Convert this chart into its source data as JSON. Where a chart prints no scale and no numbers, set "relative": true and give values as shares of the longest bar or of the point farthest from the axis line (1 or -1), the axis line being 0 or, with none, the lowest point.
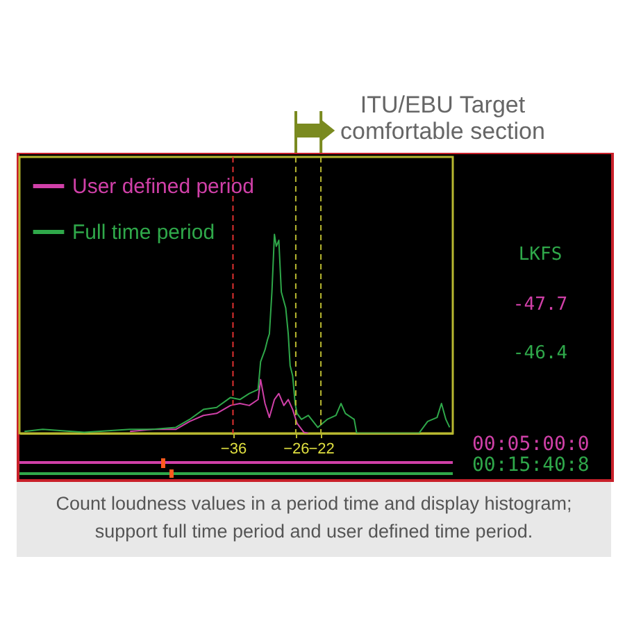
{
  "chart_data": {
    "type": "line",
    "relative": true,
    "xlim": [
      -70,
      -1
    ],
    "xticks": [
      -36,
      -26,
      -22
    ],
    "legend": "top left",
    "grid": false,
    "series": [
      {
        "name": "User defined period",
        "color": "#d040a8",
        "x": [
          -52.4,
          -48.8,
          -45.1,
          -42.9,
          -40.7,
          -38.6,
          -36.4,
          -34.9,
          -33.4,
          -32.0,
          -31.6,
          -30.9,
          -30.2,
          -29.4,
          -28.7,
          -27.9,
          -27.2,
          -26.5,
          -25.8,
          -24.7,
          -24.0
        ],
        "values": [
          0.01,
          0.02,
          0.02,
          0.06,
          0.09,
          0.1,
          0.14,
          0.15,
          0.14,
          0.17,
          0.27,
          0.15,
          0.08,
          0.17,
          0.2,
          0.14,
          0.17,
          0.12,
          0.05,
          0.005,
          0
        ]
      },
      {
        "name": "Full time period",
        "color": "#2fa84a",
        "x": [
          -69.2,
          -66.3,
          -59.7,
          -52.4,
          -48.8,
          -45.1,
          -42.9,
          -40.7,
          -38.6,
          -36.4,
          -34.9,
          -33.4,
          -32.0,
          -31.6,
          -30.9,
          -30.5,
          -30.2,
          -29.8,
          -29.4,
          -29.1,
          -28.7,
          -28.3,
          -27.6,
          -27.2,
          -26.9,
          -26.5,
          -26.1,
          -25.8,
          -25.1,
          -24.0,
          -22.5,
          -21.0,
          -19.6,
          -18.8,
          -18.1,
          -16.7,
          -16.3,
          -12.3,
          -6.4,
          -5.0,
          -3.5,
          -2.8,
          -2.1,
          -1.5
        ],
        "values": [
          0.01,
          0.02,
          0.005,
          0.02,
          0.02,
          0.03,
          0.07,
          0.12,
          0.13,
          0.18,
          0.17,
          0.2,
          0.22,
          0.36,
          0.42,
          0.47,
          0.5,
          0.71,
          1.0,
          0.94,
          0.97,
          0.71,
          0.63,
          0.5,
          0.34,
          0.29,
          0.15,
          0.1,
          0.07,
          0.09,
          0.03,
          0.07,
          0.09,
          0.15,
          0.1,
          0.07,
          0,
          0,
          0,
          0.06,
          0.08,
          0.15,
          0.07,
          0.03
        ]
      }
    ],
    "ref_lines": [
      {
        "axis": "x",
        "value": -36,
        "color": "#e03030",
        "line_style": "dashed"
      },
      {
        "axis": "x",
        "value": -26,
        "color": "#b8b830",
        "line_style": "dashed"
      },
      {
        "axis": "x",
        "value": -22,
        "color": "#b8b830",
        "line_style": "dashed"
      }
    ],
    "annotations": [
      "ITU/EBU Target\ncomfortable section",
      "LKFS",
      "-47.7",
      "-46.4",
      "00:05:00:0",
      "00:15:40:8",
      "Count loudness values in a period time and display histogram;\nsupport full time period and user defined time period."
    ]
  }
}
